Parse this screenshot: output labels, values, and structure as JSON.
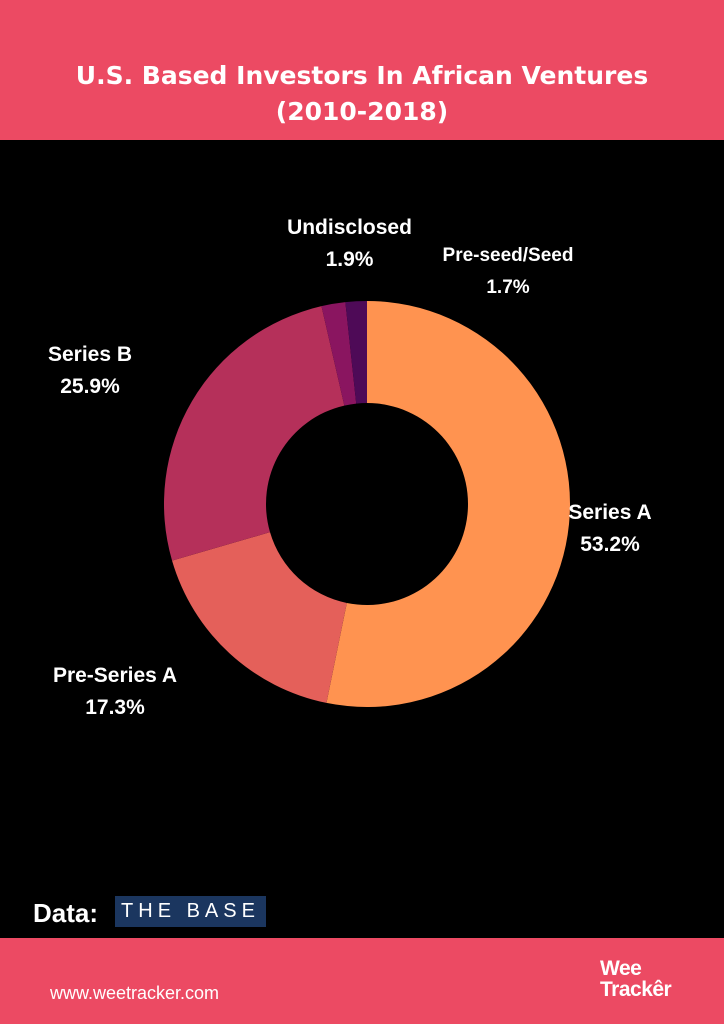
{
  "header": {
    "title_line1": "U.S. Based Investors In African Ventures",
    "title_line2": "(2010-2018)"
  },
  "source": {
    "label": "Data:",
    "brand": "THE BASE"
  },
  "footer": {
    "url": "www.weetracker.com",
    "logo_line1": "Wee",
    "logo_line2": "Trackêr"
  },
  "colors": {
    "header": "#EC4A63",
    "background": "#000000"
  },
  "chart_data": {
    "type": "pie",
    "donut": true,
    "title": "U.S. Based Investors In African Ventures (2010-2018)",
    "slices": [
      {
        "label": "Series A",
        "value": 53.2,
        "display": "53.2%",
        "color": "#FF9350"
      },
      {
        "label": "Pre-Series A",
        "value": 17.3,
        "display": "17.3%",
        "color": "#E4605A"
      },
      {
        "label": "Series B",
        "value": 25.9,
        "display": "25.9%",
        "color": "#B5305A"
      },
      {
        "label": "Undisclosed",
        "value": 1.9,
        "display": "1.9%",
        "color": "#8A1560"
      },
      {
        "label": "Pre-seed/Seed",
        "value": 1.7,
        "display": "1.7%",
        "color": "#4E0A57"
      }
    ]
  }
}
